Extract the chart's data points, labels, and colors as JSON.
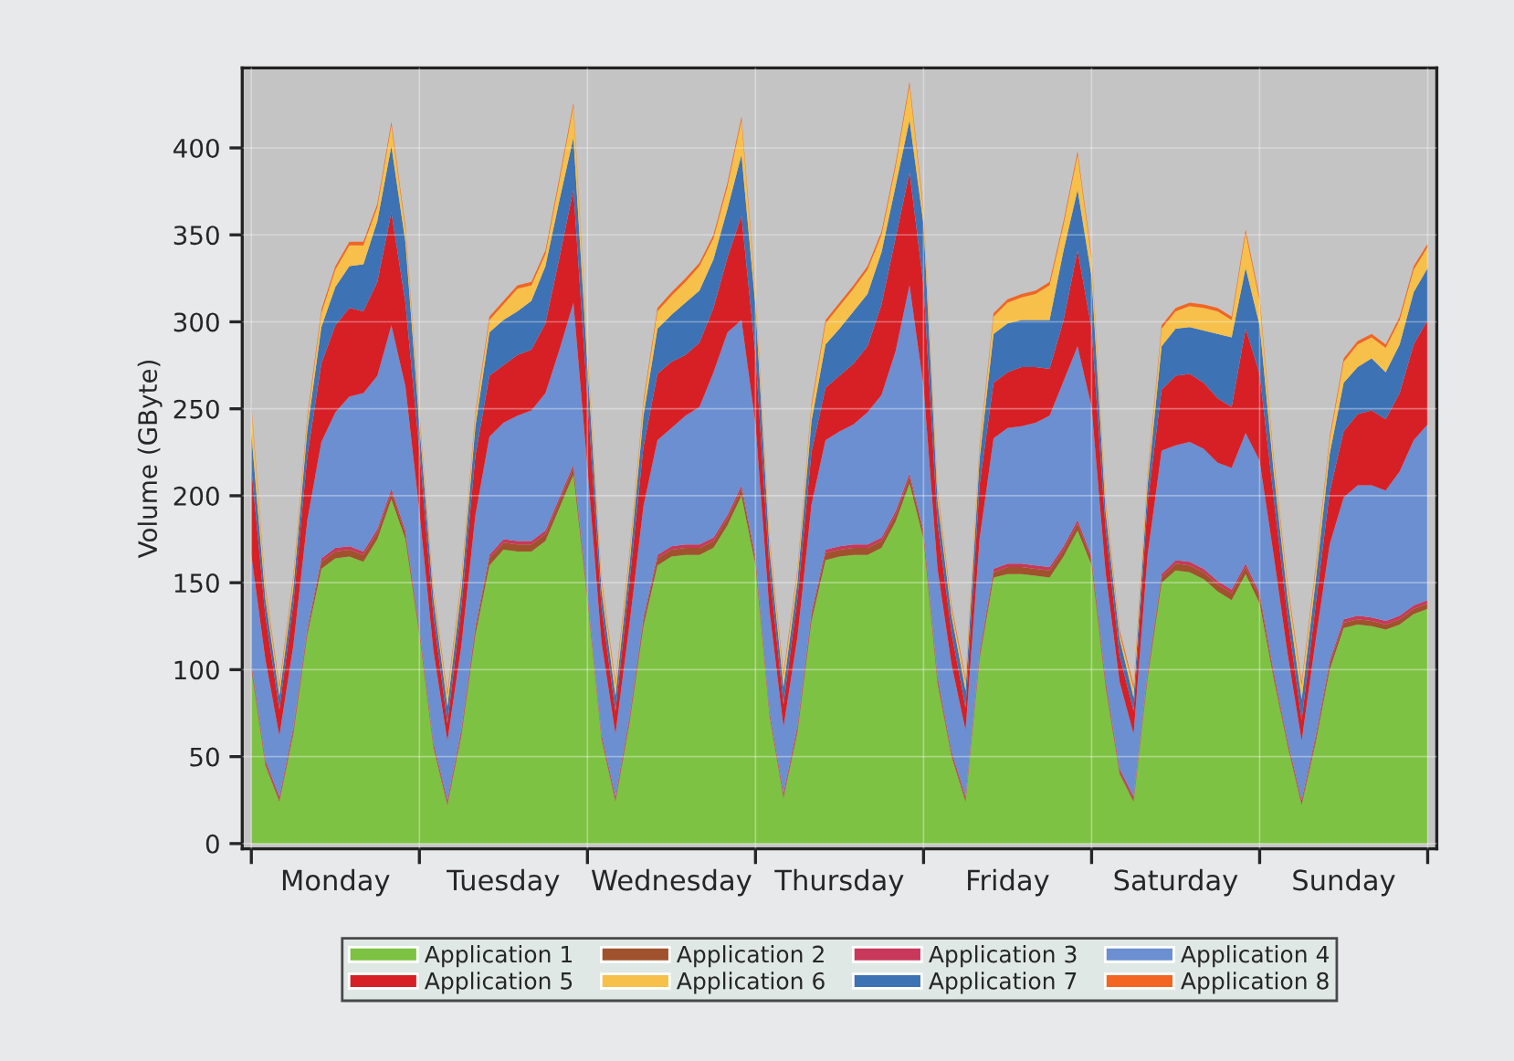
{
  "chart_data": {
    "type": "area",
    "stacked": true,
    "ylabel": "Volume (GByte)",
    "categories": [
      null,
      null,
      null,
      null,
      null,
      null,
      "Monday",
      null,
      null,
      null,
      null,
      null,
      null,
      null,
      null,
      null,
      null,
      null,
      "Tuesday",
      null,
      null,
      null,
      null,
      null,
      null,
      null,
      null,
      null,
      null,
      null,
      "Wednesday",
      null,
      null,
      null,
      null,
      null,
      null,
      null,
      null,
      null,
      null,
      null,
      "Thursday",
      null,
      null,
      null,
      null,
      null,
      null,
      null,
      null,
      null,
      null,
      null,
      "Friday",
      null,
      null,
      null,
      null,
      null,
      null,
      null,
      null,
      null,
      null,
      null,
      "Saturday",
      null,
      null,
      null,
      null,
      null,
      null,
      null,
      null,
      null,
      null,
      null,
      "Sunday",
      null,
      null,
      null,
      null,
      null,
      null
    ],
    "ylim": [
      -3,
      446
    ],
    "yticks": [
      0,
      50,
      100,
      150,
      200,
      250,
      300,
      350,
      400
    ],
    "grid": true,
    "legend": "bottom",
    "series": [
      {
        "name": "Application 1",
        "color": "#7dc242",
        "values": [
          100,
          45,
          24,
          63,
          120,
          158,
          164,
          165,
          162,
          175,
          198,
          175,
          120,
          55,
          22,
          62,
          120,
          160,
          169,
          168,
          168,
          174,
          193,
          212,
          140,
          60,
          24,
          69,
          125,
          160,
          165,
          166,
          166,
          170,
          183,
          200,
          160,
          73,
          26,
          64,
          128,
          163,
          165,
          166,
          166,
          170,
          185,
          207,
          175,
          92,
          50,
          24,
          106,
          153,
          155,
          155,
          154,
          153,
          165,
          180,
          160,
          90,
          40,
          24,
          95,
          150,
          157,
          156,
          152,
          145,
          140,
          155,
          138,
          95,
          56,
          22,
          58,
          100,
          124,
          126,
          125,
          123,
          126,
          132,
          135
        ]
      },
      {
        "name": "Application 2",
        "color": "#a0522d",
        "values": [
          2,
          1,
          1,
          2,
          2,
          4,
          4,
          4,
          4,
          4,
          4,
          3,
          2,
          1,
          1,
          2,
          3,
          4,
          4,
          4,
          4,
          4,
          4,
          4,
          2,
          1,
          1,
          2,
          3,
          4,
          4,
          4,
          4,
          4,
          4,
          4,
          3,
          1,
          1,
          2,
          3,
          4,
          4,
          4,
          4,
          4,
          4,
          4,
          3,
          2,
          1,
          1,
          2,
          3,
          4,
          4,
          4,
          4,
          4,
          4,
          3,
          2,
          1,
          1,
          2,
          3,
          4,
          4,
          4,
          4,
          4,
          4,
          4,
          2,
          1,
          1,
          2,
          3,
          3,
          3,
          3,
          3,
          3,
          3,
          3
        ]
      },
      {
        "name": "Application 3",
        "color": "#c8385a",
        "values": [
          2,
          2,
          2,
          2,
          2,
          2,
          2,
          2,
          2,
          2,
          2,
          2,
          2,
          2,
          2,
          2,
          2,
          2,
          2,
          2,
          2,
          2,
          2,
          2,
          2,
          2,
          2,
          2,
          2,
          2,
          2,
          2,
          2,
          2,
          2,
          2,
          2,
          2,
          2,
          2,
          2,
          2,
          2,
          2,
          2,
          2,
          2,
          2,
          2,
          2,
          2,
          2,
          2,
          2,
          2,
          2,
          2,
          2,
          2,
          2,
          2,
          2,
          2,
          2,
          2,
          2,
          2,
          2,
          2,
          2,
          2,
          2,
          2,
          2,
          2,
          2,
          2,
          2,
          2,
          2,
          2,
          2,
          2,
          2,
          2
        ]
      },
      {
        "name": "Application 4",
        "color": "#6b8fd0",
        "values": [
          62,
          58,
          35,
          47,
          62,
          67,
          78,
          86,
          91,
          88,
          94,
          83,
          67,
          53,
          34,
          48,
          64,
          68,
          67,
          72,
          75,
          79,
          85,
          93,
          72,
          53,
          36,
          53,
          64,
          66,
          68,
          74,
          79,
          95,
          105,
          95,
          76,
          58,
          38,
          51,
          62,
          63,
          66,
          69,
          76,
          82,
          92,
          108,
          83,
          62,
          50,
          38,
          65,
          75,
          78,
          79,
          82,
          87,
          95,
          100,
          86,
          62,
          50,
          36,
          67,
          71,
          66,
          69,
          69,
          68,
          70,
          75,
          76,
          67,
          50,
          34,
          55,
          67,
          70,
          75,
          76,
          75,
          83,
          95,
          101
        ]
      },
      {
        "name": "Application 5",
        "color": "#d71f26",
        "values": [
          50,
          25,
          15,
          24,
          37,
          45,
          50,
          51,
          47,
          54,
          65,
          48,
          35,
          20,
          10,
          22,
          34,
          35,
          33,
          35,
          35,
          40,
          53,
          65,
          40,
          20,
          13,
          24,
          34,
          38,
          38,
          35,
          37,
          37,
          43,
          60,
          40,
          23,
          13,
          22,
          30,
          30,
          32,
          35,
          38,
          52,
          65,
          65,
          58,
          26,
          18,
          13,
          31,
          32,
          32,
          34,
          32,
          27,
          35,
          55,
          45,
          25,
          15,
          13,
          30,
          35,
          40,
          39,
          38,
          37,
          35,
          60,
          50,
          33,
          21,
          12,
          20,
          30,
          38,
          41,
          43,
          41,
          45,
          55,
          60
        ]
      },
      {
        "name": "Application 7",
        "color": "#3d72b4",
        "values": [
          20,
          10,
          8,
          9,
          15,
          21,
          22,
          24,
          27,
          35,
          38,
          35,
          15,
          10,
          10,
          10,
          17,
          25,
          26,
          25,
          28,
          33,
          33,
          30,
          20,
          10,
          9,
          10,
          18,
          26,
          27,
          30,
          30,
          28,
          28,
          35,
          28,
          12,
          10,
          10,
          18,
          25,
          27,
          30,
          30,
          30,
          30,
          30,
          35,
          13,
          10,
          10,
          15,
          28,
          28,
          27,
          27,
          28,
          40,
          35,
          30,
          10,
          10,
          8,
          10,
          25,
          27,
          27,
          30,
          37,
          40,
          35,
          28,
          15,
          11,
          12,
          14,
          22,
          28,
          27,
          30,
          27,
          28,
          30,
          30
        ]
      },
      {
        "name": "Application 6",
        "color": "#f6c04a",
        "values": [
          15,
          5,
          4,
          5,
          6,
          8,
          10,
          12,
          11,
          8,
          12,
          7,
          5,
          3,
          6,
          5,
          6,
          7,
          9,
          13,
          9,
          7,
          11,
          18,
          7,
          5,
          6,
          5,
          7,
          10,
          11,
          12,
          14,
          12,
          13,
          20,
          7,
          5,
          6,
          5,
          8,
          12,
          13,
          13,
          14,
          10,
          11,
          20,
          7,
          5,
          4,
          5,
          6,
          10,
          12,
          13,
          15,
          20,
          15,
          20,
          10,
          5,
          3,
          5,
          5,
          10,
          10,
          12,
          13,
          13,
          10,
          20,
          14,
          6,
          6,
          8,
          6,
          8,
          12,
          13,
          12,
          14,
          14,
          13,
          12
        ]
      },
      {
        "name": "Application 8",
        "color": "#f26522",
        "values": [
          2,
          2,
          2,
          2,
          2,
          2,
          2,
          2,
          2,
          2,
          2,
          2,
          2,
          2,
          2,
          2,
          2,
          2,
          2,
          2,
          2,
          2,
          2,
          2,
          2,
          2,
          2,
          2,
          2,
          2,
          2,
          2,
          2,
          2,
          2,
          2,
          2,
          2,
          2,
          2,
          2,
          2,
          2,
          2,
          2,
          2,
          2,
          2,
          2,
          2,
          2,
          2,
          2,
          2,
          2,
          2,
          2,
          2,
          2,
          2,
          2,
          2,
          2,
          2,
          2,
          2,
          2,
          2,
          2,
          2,
          2,
          2,
          2,
          2,
          2,
          2,
          2,
          2,
          2,
          2,
          2,
          2,
          2,
          2,
          2
        ]
      }
    ]
  }
}
